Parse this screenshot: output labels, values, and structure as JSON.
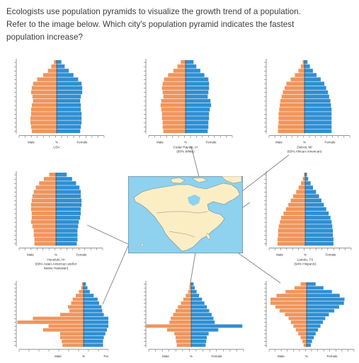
{
  "question": {
    "line1": "Ecologists use population pyramids to visualize the growth trend of a population.",
    "line2": "Refer to the image below.  Which city's population pyramid indicates the fastest",
    "line3": "population increase?"
  },
  "colors": {
    "male": "#f0955b",
    "female": "#2f8fd3",
    "ocean": "#8ed2ef",
    "land": "#fbeec4",
    "border": "#5b6d7a",
    "connector": "#7f7f7f"
  },
  "pyramids": [
    {
      "id": "usa",
      "captions": [
        "USA"
      ],
      "gender_labels": [
        "Male",
        "%",
        "Female"
      ],
      "male": [
        0.4,
        0.8,
        1.3,
        2.0,
        2.9,
        3.5,
        3.7,
        3.8,
        3.6,
        3.5,
        3.7,
        3.8,
        3.8,
        3.9,
        3.9,
        3.8,
        3.7
      ],
      "female": [
        0.7,
        1.2,
        1.8,
        2.5,
        3.2,
        3.7,
        3.8,
        3.8,
        3.6,
        3.5,
        3.6,
        3.6,
        3.7,
        3.7,
        3.7,
        3.6,
        3.5
      ]
    },
    {
      "id": "cedar-rapids",
      "captions": [
        "Cedar Rapids, IA",
        "(90% White)"
      ],
      "gender_labels": [
        "Male",
        "%",
        "Female"
      ],
      "male": [
        0.7,
        1.2,
        1.8,
        2.6,
        3.2,
        3.4,
        3.5,
        3.4,
        3.3,
        3.6,
        3.7,
        3.6,
        3.5,
        3.5,
        3.4,
        3.4,
        3.3
      ],
      "female": [
        1.2,
        1.6,
        2.2,
        2.8,
        3.4,
        3.5,
        3.5,
        3.4,
        3.3,
        3.7,
        3.8,
        3.6,
        3.5,
        3.5,
        3.4,
        3.4,
        3.3
      ]
    },
    {
      "id": "detroit",
      "captions": [
        "Detroit, MI",
        "(83% African-American)"
      ],
      "gender_labels": [
        "Male",
        "%",
        "Female"
      ],
      "male": [
        0.3,
        0.6,
        1.0,
        1.6,
        2.3,
        3.0,
        3.3,
        3.6,
        3.8,
        4.0,
        4.1,
        4.2,
        4.3,
        4.3,
        4.3,
        4.4,
        4.4
      ],
      "female": [
        0.5,
        0.9,
        1.4,
        2.0,
        2.7,
        3.3,
        3.6,
        3.9,
        4.1,
        4.3,
        4.4,
        4.5,
        4.5,
        4.5,
        4.5,
        4.5,
        4.5
      ]
    },
    {
      "id": "honolulu",
      "captions": [
        "Honolulu, HI",
        "(68% Asian-American and/or",
        "Native Hawaiian)"
      ],
      "gender_labels": [
        "Male",
        "%",
        "Female"
      ],
      "male": [
        1.0,
        1.8,
        2.5,
        3.0,
        3.3,
        3.5,
        3.6,
        3.7,
        3.7,
        3.6,
        3.6,
        3.7,
        3.5,
        3.3,
        3.3,
        3.2,
        3.2
      ],
      "female": [
        1.6,
        2.4,
        3.0,
        3.5,
        3.7,
        3.7,
        3.8,
        3.8,
        3.7,
        3.7,
        3.6,
        3.4,
        3.3,
        3.2,
        3.2,
        3.2,
        3.1
      ]
    },
    {
      "id": "laredo",
      "captions": [
        "Laredo, TX",
        "(94% Hispanic)"
      ],
      "gender_labels": [
        "Male",
        "%",
        "Female"
      ],
      "male": [
        0.2,
        0.4,
        0.7,
        1.1,
        1.5,
        2.0,
        2.4,
        2.8,
        3.2,
        3.6,
        4.0,
        4.2,
        4.4,
        4.5,
        4.5,
        4.6,
        4.6
      ],
      "female": [
        0.3,
        0.5,
        0.9,
        1.3,
        1.8,
        2.3,
        2.7,
        3.1,
        3.5,
        3.9,
        4.2,
        4.4,
        4.5,
        4.6,
        4.6,
        4.7,
        4.7
      ]
    },
    {
      "id": "bottom-left",
      "captions": [],
      "gender_labels": [
        "Male",
        "%",
        "Female"
      ],
      "male": [
        0.2,
        0.3,
        0.6,
        1.0,
        1.4,
        1.6,
        2.0,
        1.8,
        3.0,
        6.5,
        8.5,
        4.5,
        5.2,
        3.0,
        3.0,
        2.8,
        2.7
      ],
      "female": [
        0.3,
        0.5,
        0.8,
        1.3,
        1.8,
        2.0,
        2.3,
        2.4,
        2.6,
        3.2,
        3.8,
        4.2,
        3.0,
        2.8,
        2.6,
        2.5,
        2.5
      ]
    },
    {
      "id": "bottom-middle",
      "captions": [],
      "gender_labels": [
        "Male",
        "%",
        "Female"
      ],
      "male": [
        0.2,
        0.3,
        0.5,
        0.9,
        1.3,
        1.7,
        2.2,
        2.6,
        3.0,
        3.4,
        3.6,
        7.5,
        4.0,
        2.8,
        2.6,
        2.5,
        2.4
      ],
      "female": [
        0.4,
        0.6,
        0.9,
        1.3,
        1.8,
        2.2,
        2.6,
        3.0,
        3.4,
        3.7,
        3.9,
        8.5,
        4.5,
        2.9,
        2.6,
        2.5,
        2.4
      ]
    },
    {
      "id": "bottom-right",
      "captions": [],
      "gender_labels": [
        "Male",
        "%",
        "Female"
      ],
      "male": [
        1.0,
        2.0,
        3.5,
        5.0,
        6.0,
        6.0,
        5.2,
        4.5,
        3.6,
        3.0,
        2.6,
        2.2,
        1.8,
        1.4,
        1.0,
        0.7,
        0.5
      ],
      "female": [
        1.5,
        2.8,
        4.2,
        5.5,
        6.3,
        6.2,
        5.4,
        4.6,
        3.7,
        3.1,
        2.7,
        2.3,
        1.9,
        1.5,
        1.2,
        0.9,
        0.7
      ]
    }
  ]
}
